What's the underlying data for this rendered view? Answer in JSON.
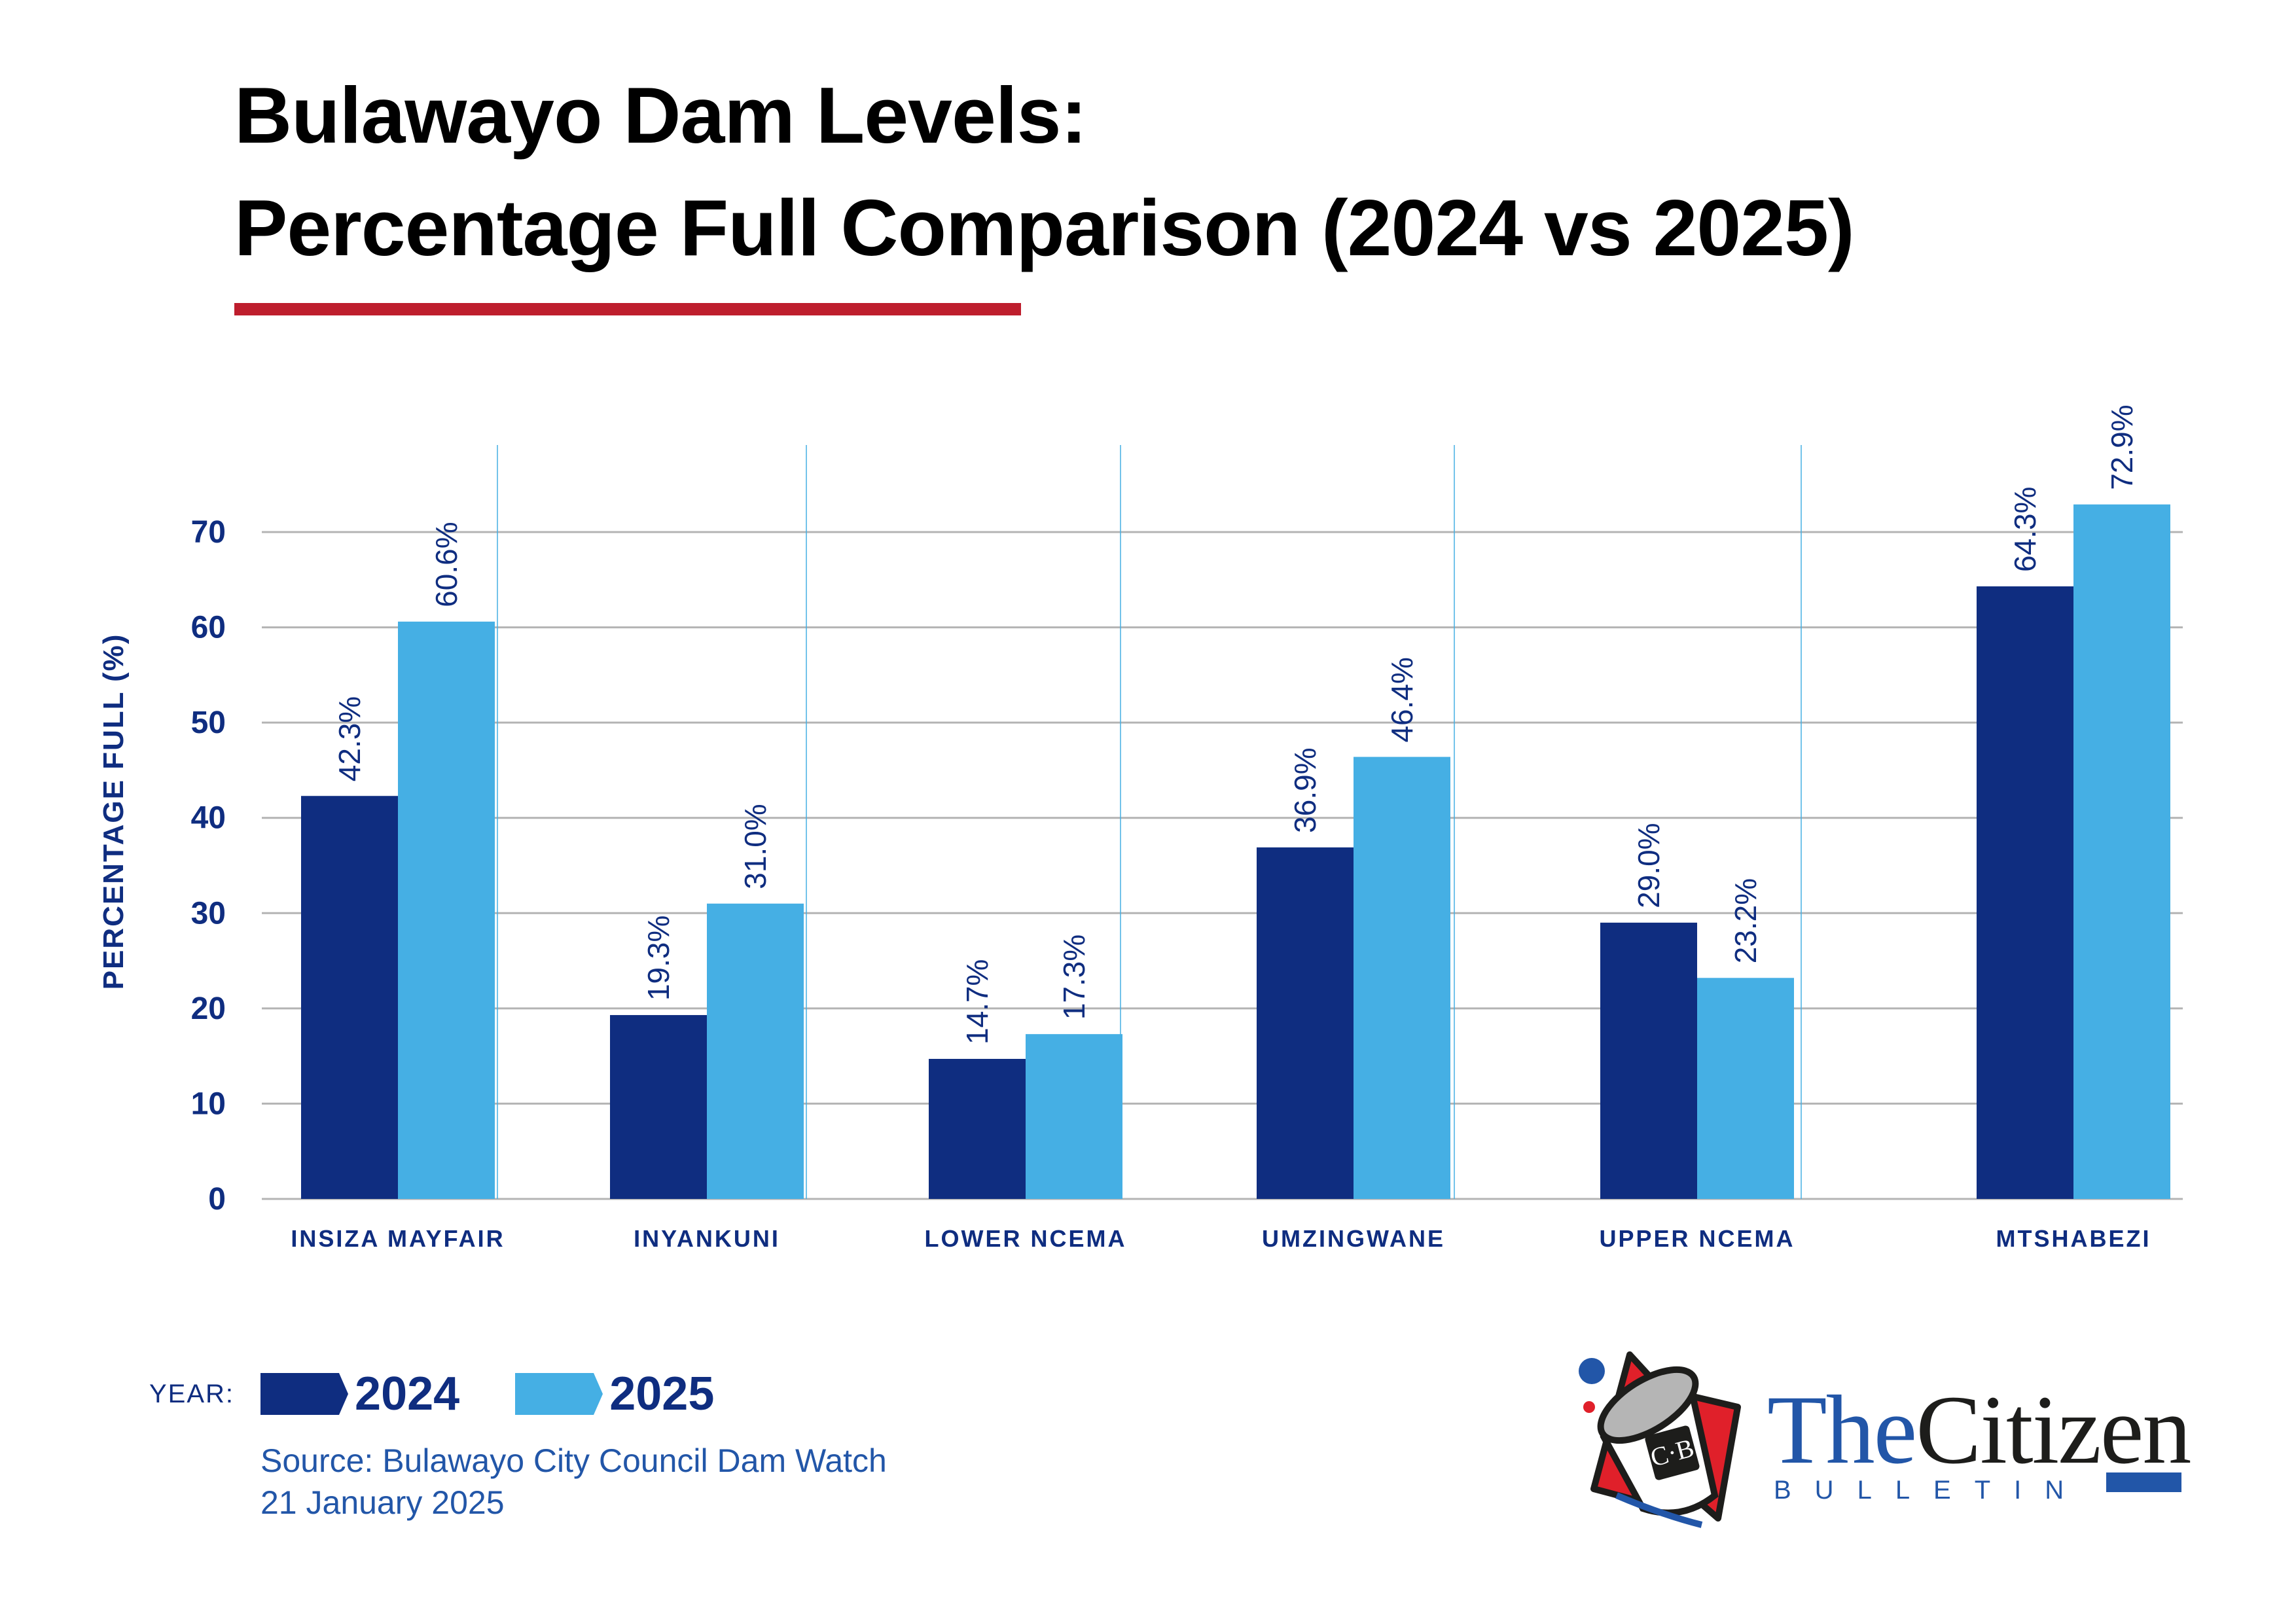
{
  "header": {
    "title_line1": "Bulawayo Dam Levels:",
    "title_line2": "Percentage Full Comparison (2024 vs 2025)",
    "accent_color": "#be1e2d"
  },
  "chart_data": {
    "type": "bar",
    "title": "Bulawayo Dam Levels: Percentage Full Comparison (2024 vs 2025)",
    "xlabel": "",
    "ylabel": "PERCENTAGE FULL (%)",
    "ylim": [
      0,
      70
    ],
    "yticks": [
      0,
      10,
      20,
      30,
      40,
      50,
      60,
      70
    ],
    "grid": "horizontal",
    "legend_position": "bottom-left",
    "categories": [
      "INSIZA MAYFAIR",
      "INYANKUNI",
      "LOWER NCEMA",
      "UMZINGWANE",
      "UPPER NCEMA",
      "MTSHABEZI"
    ],
    "series": [
      {
        "name": "2024",
        "color": "#0f2d80",
        "values": [
          42.3,
          19.3,
          14.7,
          36.9,
          29.0,
          64.3
        ],
        "labels": [
          "42.3%",
          "19.3%",
          "14.7%",
          "36.9%",
          "29.0%",
          "64.3%"
        ]
      },
      {
        "name": "2025",
        "color": "#45afe4",
        "values": [
          60.6,
          31.0,
          17.3,
          46.4,
          23.2,
          72.9
        ],
        "labels": [
          "60.6%",
          "31.0%",
          "17.3%",
          "46.4%",
          "23.2%",
          "72.9%"
        ]
      }
    ]
  },
  "legend": {
    "prefix": "YEAR:",
    "items": [
      {
        "label": "2024",
        "color": "#0f2d80"
      },
      {
        "label": "2025",
        "color": "#45afe4"
      }
    ]
  },
  "footer": {
    "source": "Source: Bulawayo City Council Dam Watch",
    "date": "21 January 2025"
  },
  "logo": {
    "the": "The",
    "citizen": "Citizen",
    "subtitle": "BULLETIN",
    "monogram": "C·B"
  }
}
